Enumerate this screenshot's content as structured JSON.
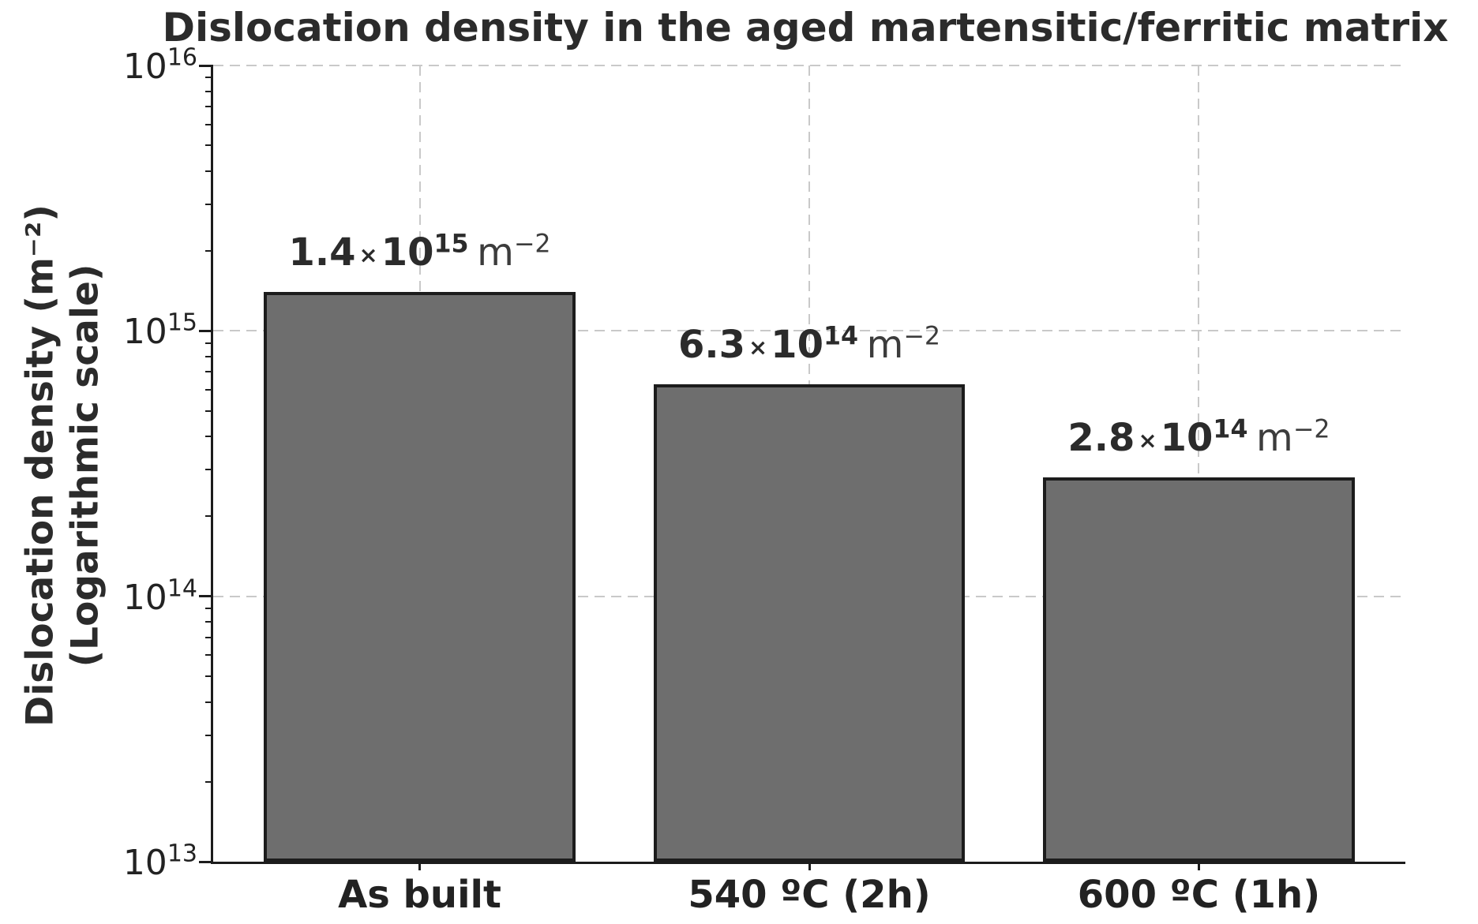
{
  "chart_data": {
    "type": "bar",
    "title": "Dislocation density in the aged martensitic/ferritic matrix",
    "ylabel_line1": "Dislocation density (m⁻²)",
    "ylabel_line2": "(Logarithmic scale)",
    "yscale": "log",
    "ylim": [
      10000000000000.0,
      1e+16
    ],
    "ytick_base": "10",
    "ytick_exponents": [
      13,
      14,
      15,
      16
    ],
    "grid": true,
    "categories": [
      "As built",
      "540 ºC (2h)",
      "600 ºC (1h)"
    ],
    "values": [
      1400000000000000.0,
      630000000000000.0,
      280000000000000.0
    ],
    "bar_labels": [
      {
        "mantissa": "1.4",
        "times": "×",
        "base": "10",
        "exponent": "15",
        "unit": "m",
        "unit_exponent": "−2"
      },
      {
        "mantissa": "6.3",
        "times": "×",
        "base": "10",
        "exponent": "14",
        "unit": "m",
        "unit_exponent": "−2"
      },
      {
        "mantissa": "2.8",
        "times": "×",
        "base": "10",
        "exponent": "14",
        "unit": "m",
        "unit_exponent": "−2"
      }
    ],
    "colors": {
      "bar_fill": "#6e6e6e",
      "bar_edge": "#1c1c1c",
      "grid": "#c9c9c9",
      "axis": "#1c1c1c",
      "text": "#2b2b2b"
    }
  }
}
